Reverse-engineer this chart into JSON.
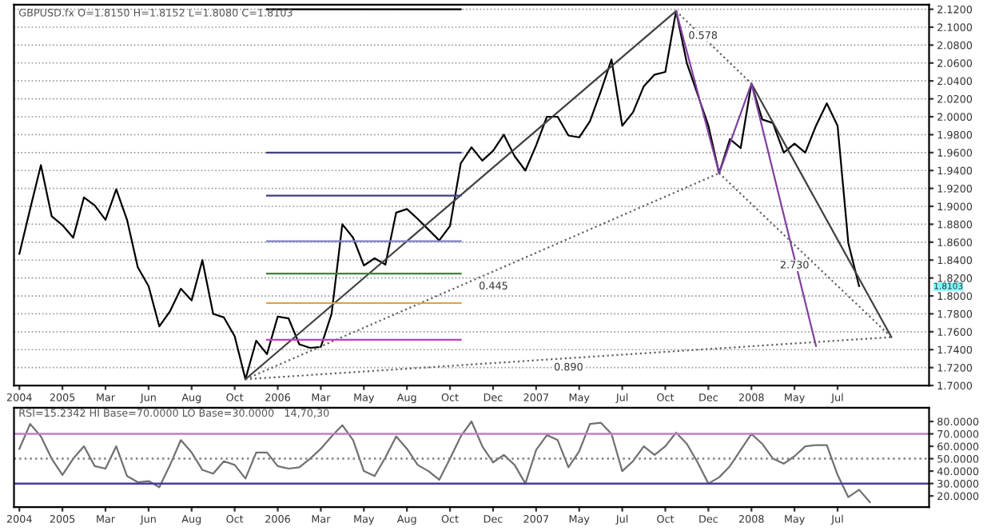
{
  "chart_data": [
    {
      "type": "line",
      "title": "GBPUSD.fx O=1.8150 H=1.8152 L=1.8080 C=1.8103",
      "grid": "y",
      "categories": [
        "2004",
        null,
        null,
        null,
        "2005",
        null,
        null,
        null,
        "Mar",
        null,
        null,
        null,
        "Jun",
        null,
        null,
        null,
        "Aug",
        null,
        null,
        null,
        "Oct",
        null,
        null,
        null,
        "2006",
        null,
        null,
        null,
        "Mar",
        null,
        null,
        null,
        "May",
        null,
        null,
        null,
        "Aug",
        null,
        null,
        null,
        "Oct",
        null,
        null,
        null,
        "Dec",
        null,
        null,
        null,
        "2007",
        null,
        null,
        null,
        "May",
        null,
        null,
        null,
        "Jul",
        null,
        null,
        null,
        "Oct",
        null,
        null,
        null,
        "Dec",
        null,
        null,
        null,
        "2008",
        null,
        null,
        null,
        "May",
        null,
        null,
        null,
        "Jul",
        null,
        null,
        null,
        null,
        null,
        null,
        null,
        null
      ],
      "ylim": [
        1.7,
        2.125
      ],
      "yticks": [
        {
          "value": 1.7,
          "label": "1.7000"
        },
        {
          "value": 1.72,
          "label": "1.7200"
        },
        {
          "value": 1.74,
          "label": "1.7400"
        },
        {
          "value": 1.76,
          "label": "1.7600"
        },
        {
          "value": 1.78,
          "label": "1.7800"
        },
        {
          "value": 1.8,
          "label": "1.8000"
        },
        {
          "value": 1.82,
          "label": "1.8200"
        },
        {
          "value": 1.84,
          "label": "1.8400"
        },
        {
          "value": 1.86,
          "label": "1.8600"
        },
        {
          "value": 1.88,
          "label": "1.8800"
        },
        {
          "value": 1.9,
          "label": "1.9000"
        },
        {
          "value": 1.92,
          "label": "1.9200"
        },
        {
          "value": 1.94,
          "label": "1.9400"
        },
        {
          "value": 1.96,
          "label": "1.9600"
        },
        {
          "value": 1.98,
          "label": "1.9800"
        },
        {
          "value": 2.0,
          "label": "2.0000"
        },
        {
          "value": 2.02,
          "label": "2.0200"
        },
        {
          "value": 2.04,
          "label": "2.0400"
        },
        {
          "value": 2.06,
          "label": "2.0600"
        },
        {
          "value": 2.08,
          "label": "2.0800"
        },
        {
          "value": 2.1,
          "label": "2.1000"
        },
        {
          "value": 2.12,
          "label": "2.1200"
        }
      ],
      "series": [
        {
          "color": "#000000",
          "values": [
            1.847,
            1.897,
            1.946,
            1.889,
            1.879,
            1.865,
            1.91,
            1.901,
            1.885,
            1.919,
            1.885,
            1.832,
            1.811,
            1.766,
            1.783,
            1.808,
            1.795,
            1.84,
            1.78,
            1.776,
            1.755,
            1.707,
            1.75,
            1.735,
            1.777,
            1.775,
            1.746,
            1.742,
            1.743,
            1.78,
            1.88,
            1.865,
            1.834,
            1.842,
            1.835,
            1.893,
            1.897,
            1.886,
            1.874,
            1.862,
            1.878,
            1.948,
            1.966,
            1.951,
            1.962,
            1.98,
            1.956,
            1.94,
            1.968,
            2.0,
            2.0,
            1.979,
            1.977,
            1.995,
            2.028,
            2.064,
            1.99,
            2.005,
            2.034,
            2.047,
            2.05,
            2.118,
            2.06,
            2.025,
            1.99,
            1.937,
            1.975,
            1.965,
            2.037,
            1.997,
            1.993,
            1.96,
            1.97,
            1.96,
            1.99,
            2.015,
            1.99,
            1.859,
            1.811,
            null,
            null,
            null,
            null,
            null,
            null
          ]
        },
        {
          "color": "#404040",
          "values": [
            null,
            null,
            null,
            null,
            null,
            null,
            null,
            null,
            null,
            null,
            null,
            null,
            null,
            null,
            null,
            null,
            null,
            null,
            null,
            null,
            null,
            1.707,
            null,
            null,
            null,
            null,
            null,
            null,
            null,
            null,
            null,
            null,
            null,
            null,
            null,
            null,
            null,
            null,
            null,
            null,
            null,
            null,
            null,
            null,
            null,
            null,
            null,
            null,
            null,
            null,
            null,
            null,
            null,
            null,
            null,
            null,
            null,
            null,
            null,
            null,
            null,
            2.118,
            null,
            null,
            null,
            null,
            null,
            null,
            null,
            null,
            null,
            null,
            null,
            null,
            null,
            null,
            null,
            null,
            null,
            null,
            null,
            null,
            null,
            null,
            null
          ]
        },
        {
          "color": "#404040",
          "values": [
            null,
            null,
            null,
            null,
            null,
            null,
            null,
            null,
            null,
            null,
            null,
            null,
            null,
            null,
            null,
            null,
            null,
            null,
            null,
            null,
            null,
            null,
            null,
            null,
            null,
            null,
            null,
            null,
            null,
            null,
            null,
            null,
            null,
            null,
            null,
            null,
            null,
            null,
            null,
            null,
            null,
            null,
            null,
            null,
            null,
            null,
            null,
            null,
            null,
            null,
            null,
            null,
            null,
            null,
            null,
            null,
            null,
            null,
            null,
            null,
            null,
            null,
            null,
            null,
            null,
            null,
            null,
            null,
            2.037,
            null,
            null,
            null,
            null,
            null,
            null,
            null,
            null,
            null,
            null,
            null,
            null,
            1.754,
            null,
            null,
            null
          ]
        },
        {
          "color": "#8040a0",
          "values": [
            null,
            null,
            null,
            null,
            null,
            null,
            null,
            null,
            null,
            null,
            null,
            null,
            null,
            null,
            null,
            null,
            null,
            null,
            null,
            null,
            null,
            null,
            null,
            null,
            null,
            null,
            null,
            null,
            null,
            null,
            null,
            null,
            null,
            null,
            null,
            null,
            null,
            null,
            null,
            null,
            null,
            null,
            null,
            null,
            null,
            null,
            null,
            null,
            null,
            null,
            null,
            null,
            null,
            null,
            null,
            null,
            null,
            null,
            null,
            null,
            null,
            2.118,
            null,
            null,
            null,
            1.937,
            null,
            null,
            2.037,
            null,
            null,
            null,
            null,
            null,
            1.744,
            null,
            null,
            null,
            null,
            null,
            null,
            null,
            null,
            null,
            null
          ]
        },
        {
          "color": "#606060",
          "line_style": "dotted",
          "values": [
            null,
            null,
            null,
            null,
            null,
            null,
            null,
            null,
            null,
            null,
            null,
            null,
            null,
            null,
            null,
            null,
            null,
            null,
            null,
            null,
            null,
            1.707,
            null,
            null,
            null,
            null,
            null,
            null,
            null,
            null,
            null,
            null,
            null,
            null,
            null,
            null,
            null,
            null,
            null,
            null,
            null,
            null,
            null,
            null,
            null,
            null,
            null,
            null,
            null,
            null,
            null,
            null,
            null,
            null,
            null,
            null,
            null,
            null,
            null,
            null,
            null,
            null,
            null,
            null,
            null,
            1.937,
            null,
            null,
            null,
            null,
            null,
            null,
            null,
            null,
            null,
            null,
            null,
            null,
            null,
            null,
            null,
            null,
            null,
            null,
            null
          ]
        },
        {
          "color": "#606060",
          "line_style": "dotted",
          "values": [
            null,
            null,
            null,
            null,
            null,
            null,
            null,
            null,
            null,
            null,
            null,
            null,
            null,
            null,
            null,
            null,
            null,
            null,
            null,
            null,
            null,
            null,
            null,
            null,
            null,
            null,
            null,
            null,
            null,
            null,
            null,
            null,
            null,
            null,
            null,
            null,
            null,
            null,
            null,
            null,
            null,
            null,
            null,
            null,
            null,
            null,
            null,
            null,
            null,
            null,
            null,
            null,
            null,
            null,
            null,
            null,
            null,
            null,
            null,
            null,
            null,
            2.118,
            null,
            null,
            null,
            null,
            null,
            null,
            2.037,
            null,
            null,
            null,
            null,
            null,
            null,
            null,
            null,
            null,
            null,
            null,
            null,
            null,
            null,
            null,
            null
          ]
        },
        {
          "color": "#606060",
          "line_style": "dotted",
          "values": [
            null,
            null,
            null,
            null,
            null,
            null,
            null,
            null,
            null,
            null,
            null,
            null,
            null,
            null,
            null,
            null,
            null,
            null,
            null,
            null,
            null,
            null,
            null,
            null,
            null,
            null,
            null,
            null,
            null,
            null,
            null,
            null,
            null,
            null,
            null,
            null,
            null,
            null,
            null,
            null,
            null,
            null,
            null,
            null,
            null,
            null,
            null,
            null,
            null,
            null,
            null,
            null,
            null,
            null,
            null,
            null,
            null,
            null,
            null,
            null,
            null,
            null,
            null,
            null,
            null,
            1.937,
            null,
            null,
            null,
            null,
            null,
            null,
            null,
            null,
            null,
            null,
            null,
            null,
            null,
            null,
            null,
            1.754,
            null,
            null,
            null
          ]
        },
        {
          "color": "#606060",
          "line_style": "dotted",
          "values": [
            null,
            null,
            null,
            null,
            null,
            null,
            null,
            null,
            null,
            null,
            null,
            null,
            null,
            null,
            null,
            null,
            null,
            null,
            null,
            null,
            null,
            1.707,
            null,
            null,
            null,
            null,
            null,
            null,
            null,
            null,
            null,
            null,
            null,
            null,
            null,
            null,
            null,
            null,
            null,
            null,
            null,
            null,
            null,
            null,
            null,
            null,
            null,
            null,
            null,
            null,
            null,
            null,
            null,
            null,
            null,
            null,
            null,
            null,
            null,
            null,
            null,
            null,
            null,
            null,
            null,
            null,
            null,
            null,
            null,
            null,
            null,
            null,
            null,
            null,
            null,
            null,
            null,
            null,
            null,
            null,
            null,
            1.754,
            null,
            null,
            null
          ]
        },
        {
          "color": "#000000",
          "values": [
            null,
            null,
            null,
            null,
            null,
            null,
            null,
            null,
            null,
            null,
            null,
            null,
            null,
            null,
            null,
            null,
            null,
            null,
            null,
            null,
            null,
            null,
            null,
            2.12,
            null,
            null,
            null,
            null,
            null,
            null,
            null,
            null,
            null,
            null,
            null,
            null,
            null,
            null,
            null,
            null,
            null,
            2.12,
            null,
            null,
            null,
            null,
            null,
            null,
            null,
            null,
            null,
            null,
            null,
            null,
            null,
            null,
            null,
            null,
            null,
            null,
            null,
            null,
            null,
            null,
            null,
            null,
            null,
            null,
            null,
            null,
            null,
            null,
            null,
            null,
            null,
            null,
            null,
            null,
            null,
            null,
            null,
            null,
            null,
            null,
            null
          ]
        },
        {
          "color": "#404080",
          "values": [
            null,
            null,
            null,
            null,
            null,
            null,
            null,
            null,
            null,
            null,
            null,
            null,
            null,
            null,
            null,
            null,
            null,
            null,
            null,
            null,
            null,
            null,
            null,
            1.96,
            null,
            null,
            null,
            null,
            null,
            null,
            null,
            null,
            null,
            null,
            null,
            null,
            null,
            null,
            null,
            null,
            null,
            1.96,
            null,
            null,
            null,
            null,
            null,
            null,
            null,
            null,
            null,
            null,
            null,
            null,
            null,
            null,
            null,
            null,
            null,
            null,
            null,
            null,
            null,
            null,
            null,
            null,
            null,
            null,
            null,
            null,
            null,
            null,
            null,
            null,
            null,
            null,
            null,
            null,
            null,
            null,
            null,
            null,
            null,
            null,
            null
          ]
        },
        {
          "color": "#404080",
          "values": [
            null,
            null,
            null,
            null,
            null,
            null,
            null,
            null,
            null,
            null,
            null,
            null,
            null,
            null,
            null,
            null,
            null,
            null,
            null,
            null,
            null,
            null,
            null,
            1.912,
            null,
            null,
            null,
            null,
            null,
            null,
            null,
            null,
            null,
            null,
            null,
            null,
            null,
            null,
            null,
            null,
            null,
            1.912,
            null,
            null,
            null,
            null,
            null,
            null,
            null,
            null,
            null,
            null,
            null,
            null,
            null,
            null,
            null,
            null,
            null,
            null,
            null,
            null,
            null,
            null,
            null,
            null,
            null,
            null,
            null,
            null,
            null,
            null,
            null,
            null,
            null,
            null,
            null,
            null,
            null,
            null,
            null,
            null,
            null,
            null,
            null
          ]
        },
        {
          "color": "#8080c0",
          "values": [
            null,
            null,
            null,
            null,
            null,
            null,
            null,
            null,
            null,
            null,
            null,
            null,
            null,
            null,
            null,
            null,
            null,
            null,
            null,
            null,
            null,
            null,
            null,
            1.861,
            null,
            null,
            null,
            null,
            null,
            null,
            null,
            null,
            null,
            null,
            null,
            null,
            null,
            null,
            null,
            null,
            null,
            1.861,
            null,
            null,
            null,
            null,
            null,
            null,
            null,
            null,
            null,
            null,
            null,
            null,
            null,
            null,
            null,
            null,
            null,
            null,
            null,
            null,
            null,
            null,
            null,
            null,
            null,
            null,
            null,
            null,
            null,
            null,
            null,
            null,
            null,
            null,
            null,
            null,
            null,
            null,
            null,
            null,
            null,
            null,
            null
          ]
        },
        {
          "color": "#408040",
          "values": [
            null,
            null,
            null,
            null,
            null,
            null,
            null,
            null,
            null,
            null,
            null,
            null,
            null,
            null,
            null,
            null,
            null,
            null,
            null,
            null,
            null,
            null,
            null,
            1.825,
            null,
            null,
            null,
            null,
            null,
            null,
            null,
            null,
            null,
            null,
            null,
            null,
            null,
            null,
            null,
            null,
            null,
            1.825,
            null,
            null,
            null,
            null,
            null,
            null,
            null,
            null,
            null,
            null,
            null,
            null,
            null,
            null,
            null,
            null,
            null,
            null,
            null,
            null,
            null,
            null,
            null,
            null,
            null,
            null,
            null,
            null,
            null,
            null,
            null,
            null,
            null,
            null,
            null,
            null,
            null,
            null,
            null,
            null,
            null,
            null,
            null
          ]
        },
        {
          "color": "#e0a040",
          "values": [
            null,
            null,
            null,
            null,
            null,
            null,
            null,
            null,
            null,
            null,
            null,
            null,
            null,
            null,
            null,
            null,
            null,
            null,
            null,
            null,
            null,
            null,
            null,
            1.792,
            null,
            null,
            null,
            null,
            null,
            null,
            null,
            null,
            null,
            null,
            null,
            null,
            null,
            null,
            null,
            null,
            null,
            1.792,
            null,
            null,
            null,
            null,
            null,
            null,
            null,
            null,
            null,
            null,
            null,
            null,
            null,
            null,
            null,
            null,
            null,
            null,
            null,
            null,
            null,
            null,
            null,
            null,
            null,
            null,
            null,
            null,
            null,
            null,
            null,
            null,
            null,
            null,
            null,
            null,
            null,
            null,
            null,
            null,
            null,
            null,
            null
          ]
        },
        {
          "color": "#c040c0",
          "values": [
            null,
            null,
            null,
            null,
            null,
            null,
            null,
            null,
            null,
            null,
            null,
            null,
            null,
            null,
            null,
            null,
            null,
            null,
            null,
            null,
            null,
            null,
            null,
            1.751,
            null,
            null,
            null,
            null,
            null,
            null,
            null,
            null,
            null,
            null,
            null,
            null,
            null,
            null,
            null,
            null,
            null,
            1.751,
            null,
            null,
            null,
            null,
            null,
            null,
            null,
            null,
            null,
            null,
            null,
            null,
            null,
            null,
            null,
            null,
            null,
            null,
            null,
            null,
            null,
            null,
            null,
            null,
            null,
            null,
            null,
            null,
            null,
            null,
            null,
            null,
            null,
            null,
            null,
            null,
            null,
            null,
            null,
            null,
            null,
            null,
            null
          ]
        }
      ],
      "annotations": [
        "0.578",
        "0.445",
        "2.730",
        "0.890",
        "1.8103"
      ]
    },
    {
      "type": "line",
      "title": "RSI=15.2342 HI Base=70.0000 LO Base=30.0000   14,70,30",
      "grid": false,
      "categories": [
        "2004",
        null,
        null,
        null,
        "2005",
        null,
        null,
        null,
        "Mar",
        null,
        null,
        null,
        "Jun",
        null,
        null,
        null,
        "Aug",
        null,
        null,
        null,
        "Oct",
        null,
        null,
        null,
        "2006",
        null,
        null,
        null,
        "Mar",
        null,
        null,
        null,
        "May",
        null,
        null,
        null,
        "Aug",
        null,
        null,
        null,
        "Oct",
        null,
        null,
        null,
        "Dec",
        null,
        null,
        null,
        "2007",
        null,
        null,
        null,
        "May",
        null,
        null,
        null,
        "Jul",
        null,
        null,
        null,
        "Oct",
        null,
        null,
        null,
        "Dec",
        null,
        null,
        null,
        "2008",
        null,
        null,
        null,
        "May",
        null,
        null,
        null,
        "Jul",
        null,
        null,
        null,
        null,
        null,
        null,
        null,
        null
      ],
      "ylim": [
        11,
        91
      ],
      "yticks": [
        {
          "value": 20,
          "label": "20.0000"
        },
        {
          "value": 30,
          "label": "30.0000"
        },
        {
          "value": 40,
          "label": "40.0000"
        },
        {
          "value": 50,
          "label": "50.0000"
        },
        {
          "value": 60,
          "label": "60.0000"
        },
        {
          "value": 70,
          "label": "70.0000"
        },
        {
          "value": 80,
          "label": "80.0000"
        }
      ],
      "ref_lines": [
        {
          "axis": "y",
          "value": 70,
          "color": "#c080c0"
        },
        {
          "axis": "y",
          "value": 30,
          "color": "#4040a0"
        },
        {
          "axis": "y",
          "value": 50,
          "color": "#808080",
          "line_style": "dotted"
        }
      ],
      "series": [
        {
          "color": "#707070",
          "values": [
            58,
            78,
            68,
            50,
            37,
            50,
            60,
            44,
            42,
            60,
            36,
            31,
            32,
            27,
            45,
            65,
            55,
            41,
            38,
            48,
            45,
            34,
            55,
            55,
            44,
            42,
            43,
            50,
            58,
            68,
            77,
            65,
            40,
            36,
            51,
            68,
            58,
            45,
            40,
            33,
            50,
            68,
            80,
            60,
            47,
            53,
            45,
            30,
            57,
            69,
            65,
            43,
            56,
            78,
            79,
            70,
            40,
            48,
            60,
            53,
            60,
            71,
            62,
            47,
            30,
            35,
            44,
            57,
            70,
            62,
            50,
            46,
            52,
            60,
            61,
            61,
            37,
            19,
            25,
            15,
            null,
            null,
            null,
            null,
            null
          ]
        }
      ]
    }
  ]
}
